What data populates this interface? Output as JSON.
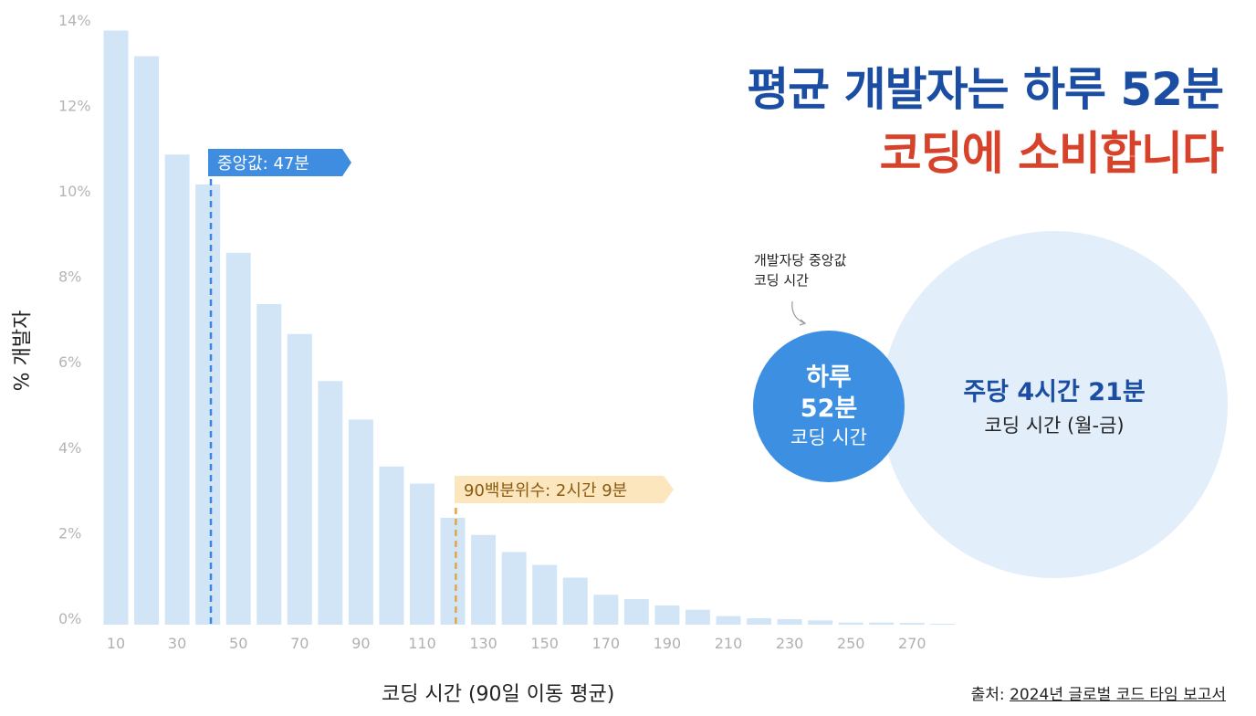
{
  "title": {
    "line1": "평균 개발자는 하루 52분",
    "line2": "코딩에 소비합니다"
  },
  "colors": {
    "bar": "#d2e5f7",
    "median": "#3b86dc",
    "p90_fill": "#fbe6bd",
    "p90_line": "#e3a544",
    "title_blue": "#1b4ea3",
    "title_red": "#d7432a"
  },
  "chart_data": {
    "type": "bar",
    "xlabel": "코딩 시간 (90일 이동 평균)",
    "ylabel": "% 개발자",
    "categories": [
      10,
      20,
      30,
      40,
      50,
      60,
      70,
      80,
      90,
      100,
      110,
      120,
      130,
      140,
      150,
      160,
      170,
      180,
      190,
      200,
      210,
      220,
      230,
      240,
      250,
      260,
      270,
      280
    ],
    "values": [
      13.9,
      13.3,
      11.0,
      10.3,
      8.7,
      7.5,
      6.8,
      5.7,
      4.8,
      3.7,
      3.3,
      2.5,
      2.1,
      1.7,
      1.4,
      1.1,
      0.7,
      0.6,
      0.45,
      0.35,
      0.2,
      0.15,
      0.13,
      0.1,
      0.05,
      0.05,
      0.04,
      0.02
    ],
    "x_tick_labels": [
      "10",
      "30",
      "50",
      "70",
      "90",
      "110",
      "130",
      "150",
      "170",
      "190",
      "210",
      "230",
      "250",
      "270"
    ],
    "y_tick_labels": [
      "0%",
      "2%",
      "4%",
      "6%",
      "8%",
      "10%",
      "12%",
      "14%"
    ],
    "ylim": [
      0,
      14
    ],
    "grid": false,
    "annotations": [
      {
        "label": "중앙값: 47분",
        "x": 41
      },
      {
        "label": "90백분위수: 2시간 9분",
        "x": 121
      }
    ]
  },
  "note": {
    "line1": "개발자당 중앙값",
    "line2": "코딩 시간"
  },
  "small_circle": {
    "line1": "하루",
    "line2": "52분",
    "line3": "코딩 시간"
  },
  "big_circle": {
    "line1": "주당 4시간 21분",
    "line2": "코딩 시간 (월-금)"
  },
  "source": {
    "prefix": "출처: ",
    "text": "2024년 글로벌 코드 타임 보고서"
  }
}
